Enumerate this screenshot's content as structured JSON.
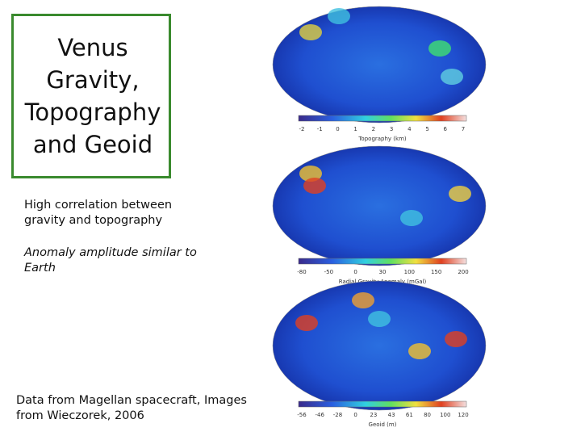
{
  "title": {
    "lines": [
      "Venus",
      "Gravity,",
      "Topography",
      "and Geoid"
    ]
  },
  "notes": [
    {
      "lines": [
        "High correlation between",
        "gravity and topography"
      ]
    },
    {
      "lines": [
        "Anomaly amplitude similar to",
        "Earth"
      ]
    },
    {
      "lines": [
        "Data from Magellan spacecraft, Images",
        "from Wieczorek, 2006"
      ]
    }
  ],
  "maps": [
    {
      "ticks": [
        "-2",
        "-1",
        "0",
        "1",
        "2",
        "3",
        "4",
        "5",
        "6",
        "7"
      ],
      "label": "Topography (km)"
    },
    {
      "ticks": [
        "-80",
        "-50",
        "0",
        "30",
        "100",
        "150",
        "200"
      ],
      "label": "Radial Gravity Anomaly (mGal)"
    },
    {
      "ticks": [
        "-56",
        "-46",
        "-28",
        "0",
        "23",
        "43",
        "61",
        "80",
        "100",
        "120"
      ],
      "label": "Geoid (m)"
    }
  ]
}
